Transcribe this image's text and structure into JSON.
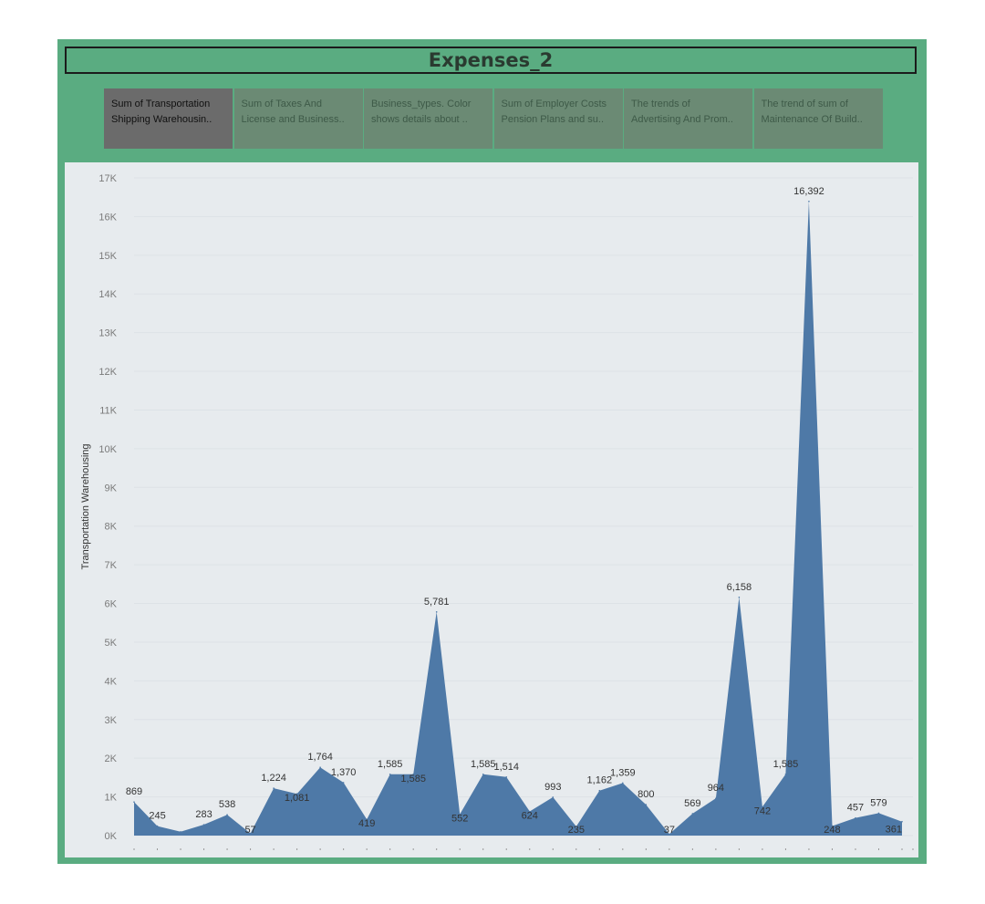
{
  "dashboard": {
    "title": "Expenses_2",
    "tabs": [
      {
        "line1": "Sum of Transportation",
        "line2": "Shipping Warehousin..",
        "active": true
      },
      {
        "line1": "Sum of Taxes And",
        "line2": "License and Business..",
        "active": false
      },
      {
        "line1": "Business_types. Color",
        "line2": "shows details about ..",
        "active": false
      },
      {
        "line1": "Sum of Employer Costs",
        "line2": "Pension Plans and su..",
        "active": false
      },
      {
        "line1": "The trends of",
        "line2": "Advertising And Prom..",
        "active": false
      },
      {
        "line1": "The trend of sum of",
        "line2": "Maintenance Of Build..",
        "active": false
      }
    ]
  },
  "colors": {
    "frame": "#5aac81",
    "plot_background": "#e7ebee",
    "area_fill": "#4e79a7",
    "active_tab": "#6b6b6b",
    "inactive_tab": "#6b8a74"
  },
  "chart_data": {
    "type": "area",
    "title": "",
    "xlabel": "",
    "ylabel": "Transportation Warehousing",
    "ylim": [
      0,
      17000
    ],
    "yticks": [
      0,
      1000,
      2000,
      3000,
      4000,
      5000,
      6000,
      7000,
      8000,
      9000,
      10000,
      11000,
      12000,
      13000,
      14000,
      15000,
      16000,
      17000
    ],
    "ytick_labels": [
      "0K",
      "1K",
      "2K",
      "3K",
      "4K",
      "5K",
      "6K",
      "7K",
      "8K",
      "9K",
      "10K",
      "11K",
      "12K",
      "13K",
      "14K",
      "15K",
      "16K",
      "17K"
    ],
    "grid": true,
    "values": [
      869,
      245,
      100,
      283,
      538,
      57,
      1224,
      1081,
      1764,
      1370,
      419,
      1585,
      1585,
      5781,
      552,
      1585,
      1514,
      624,
      993,
      235,
      1162,
      1359,
      800,
      37,
      569,
      964,
      6158,
      742,
      1585,
      16392,
      248,
      457,
      579,
      361
    ],
    "labels": [
      "869",
      "245",
      "",
      "283",
      "538",
      "57",
      "1,224",
      "1,081",
      "1,764",
      "1,370",
      "419",
      "1,585",
      "1,585",
      "5,781",
      "552",
      "1,585",
      "1,514",
      "624",
      "993",
      "235",
      "1,162",
      "1,359",
      "800",
      "37",
      "569",
      "964",
      "6,158",
      "742",
      "1,585",
      "16,392",
      "248",
      "457",
      "579",
      "361"
    ]
  }
}
